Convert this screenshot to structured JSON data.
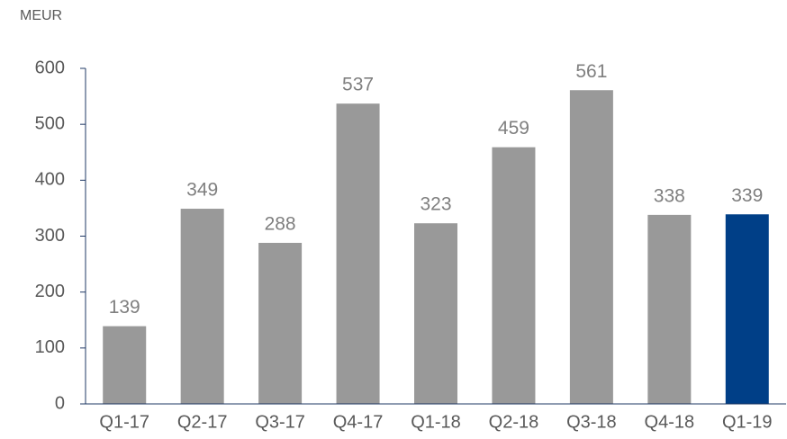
{
  "chart_data": {
    "type": "bar",
    "y_label": "MEUR",
    "categories": [
      "Q1-17",
      "Q2-17",
      "Q3-17",
      "Q4-17",
      "Q1-18",
      "Q2-18",
      "Q3-18",
      "Q4-18",
      "Q1-19"
    ],
    "values": [
      139,
      349,
      288,
      537,
      323,
      459,
      561,
      338,
      339
    ],
    "colors": [
      "#999999",
      "#999999",
      "#999999",
      "#999999",
      "#999999",
      "#999999",
      "#999999",
      "#999999",
      "#003f87"
    ],
    "ylim": [
      0,
      600
    ],
    "yticks": [
      0,
      100,
      200,
      300,
      400,
      500,
      600
    ],
    "grid": false
  }
}
